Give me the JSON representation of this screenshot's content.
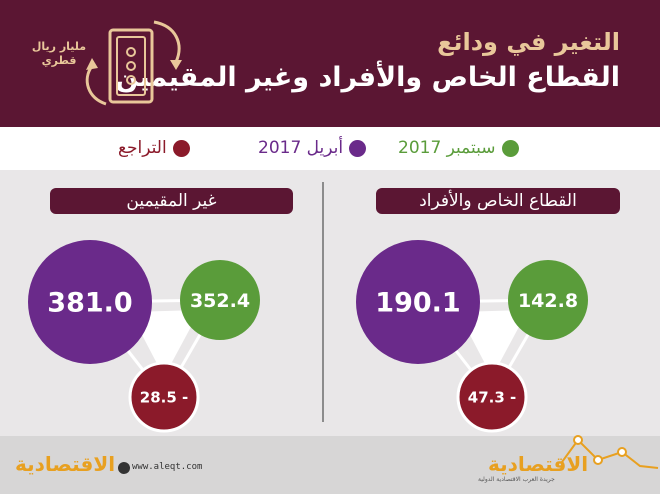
{
  "header": {
    "title_line1": "التغير في ودائع",
    "title_line2": "القطاع الخاص والأفراد وغير المقيمين",
    "unit_line1": "مليار ريال",
    "unit_line2": "قطري"
  },
  "legend": [
    {
      "label": "سبتمبر 2017",
      "color": "#5a9c3a"
    },
    {
      "label": "أبريل 2017",
      "color": "#6a2a8a"
    },
    {
      "label": "التراجع",
      "color": "#8b1a2a"
    }
  ],
  "footer": {
    "url": "www.aleqt.com",
    "brand": "الاقتصادية",
    "brand_sub": "جريدة العرب الاقتصادية الدولية"
  },
  "colors": {
    "header_bg": "#5b1633",
    "accent_gold": "#e9c79a",
    "green": "#5a9c3a",
    "purple": "#6a2a8a",
    "dark_red": "#8b1a2a"
  },
  "chart_data": [
    {
      "type": "bubble",
      "title": "القطاع الخاص والأفراد",
      "april_2017": 190.1,
      "september_2017": 142.8,
      "decline": -47.3,
      "labels": {
        "april_2017": "190.1",
        "september_2017": "142.8",
        "decline": "47.3 -"
      }
    },
    {
      "type": "bubble",
      "title": "غير المقيمين",
      "april_2017": 381.0,
      "september_2017": 352.4,
      "decline": -28.5,
      "labels": {
        "april_2017": "381.0",
        "september_2017": "352.4",
        "decline": "28.5 -"
      }
    }
  ]
}
